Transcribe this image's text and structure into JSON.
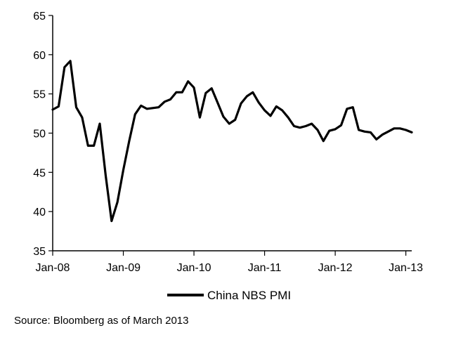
{
  "chart_data": {
    "type": "line",
    "title": "",
    "xlabel": "",
    "ylabel": "",
    "ylim": [
      35,
      65
    ],
    "yticks": [
      35,
      40,
      45,
      50,
      55,
      60,
      65
    ],
    "xticks": [
      "Jan-08",
      "Jan-09",
      "Jan-10",
      "Jan-11",
      "Jan-12",
      "Jan-13"
    ],
    "x_start": "Jan-08",
    "x_frequency": "monthly",
    "grid": false,
    "legend": "bottom-center",
    "series": [
      {
        "name": "China NBS PMI",
        "color": "#000000",
        "values": [
          53.0,
          53.4,
          58.4,
          59.2,
          53.3,
          52.0,
          48.4,
          48.4,
          51.2,
          44.6,
          38.8,
          41.2,
          45.3,
          49.0,
          52.4,
          53.5,
          53.1,
          53.2,
          53.3,
          54.0,
          54.3,
          55.2,
          55.2,
          56.6,
          55.8,
          52.0,
          55.1,
          55.7,
          53.9,
          52.1,
          51.2,
          51.7,
          53.8,
          54.7,
          55.2,
          53.9,
          52.9,
          52.2,
          53.4,
          52.9,
          52.0,
          50.9,
          50.7,
          50.9,
          51.2,
          50.4,
          49.0,
          50.3,
          50.5,
          51.0,
          53.1,
          53.3,
          50.4,
          50.2,
          50.1,
          49.2,
          49.8,
          50.2,
          50.6,
          50.6,
          50.4,
          50.1
        ]
      }
    ],
    "source": "Source: Bloomberg as of March 2013"
  }
}
